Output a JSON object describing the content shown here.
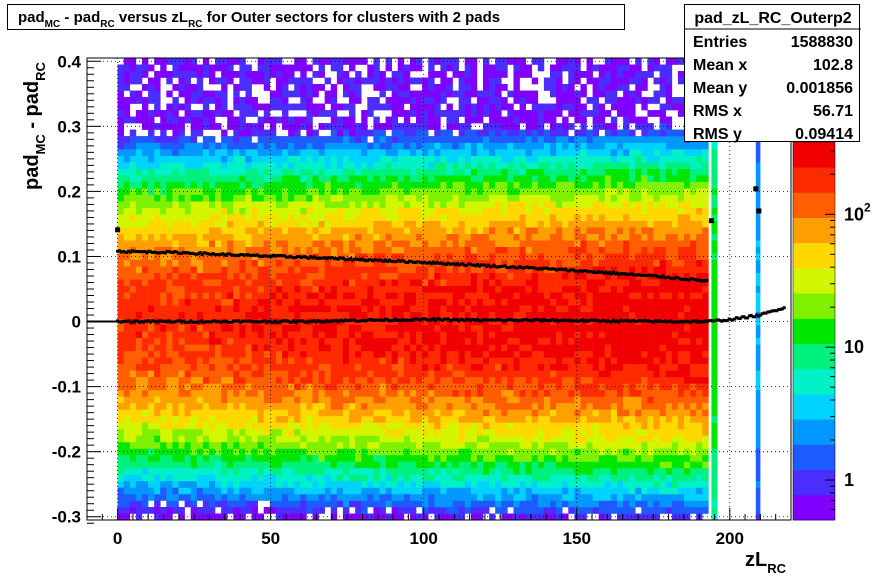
{
  "chart_data": {
    "type": "heatmap",
    "title_parts": {
      "a": "pad",
      "a_sub": "MC",
      "b": " - pad",
      "b_sub": "RC",
      "c": " versus zL",
      "c_sub": "RC",
      "d": " for Outer sectors for clusters with 2 pads"
    },
    "xlabel": {
      "main": "zL",
      "sub": "RC"
    },
    "ylabel": {
      "a": "pad",
      "a_sub": "MC",
      "b": " - pad",
      "b_sub": "RC"
    },
    "xlim": [
      -10,
      220
    ],
    "ylim": [
      -0.305,
      0.405
    ],
    "x_ticks": [
      0,
      50,
      100,
      150,
      200
    ],
    "y_ticks": [
      -0.3,
      -0.2,
      -0.1,
      0,
      0.1,
      0.2,
      0.3,
      0.4
    ],
    "x_tick_labels": [
      "0",
      "50",
      "100",
      "150",
      "200"
    ],
    "y_tick_labels": [
      "-0.3",
      "-0.2",
      "-0.1",
      "0",
      "0.1",
      "0.2",
      "0.3",
      "0.4"
    ],
    "grid": true,
    "z_scale": "log",
    "z_range": [
      0.5,
      350
    ],
    "z_tick_labels": [
      {
        "value": 1,
        "base": "1",
        "exp": ""
      },
      {
        "value": 10,
        "base": "10",
        "exp": ""
      },
      {
        "value": 100,
        "base": "10",
        "exp": "2"
      }
    ],
    "density_model": {
      "x_range": [
        0,
        193
      ],
      "z_max": 320,
      "sigma_y": 0.088,
      "extra_bands": [
        [
          194,
          196
        ],
        [
          208.5,
          210
        ]
      ]
    },
    "profile_mean": {
      "x": [
        0,
        20,
        40,
        60,
        80,
        100,
        120,
        140,
        160,
        180,
        193,
        200,
        210,
        218
      ],
      "y": [
        0.0,
        0.0,
        0.0,
        0.0,
        0.002,
        0.003,
        0.002,
        0.002,
        0.001,
        0.0,
        0.0,
        0.003,
        0.01,
        0.022
      ]
    },
    "profile_rms": {
      "x": [
        0,
        20,
        40,
        60,
        80,
        100,
        120,
        140,
        160,
        180,
        193
      ],
      "y": [
        0.108,
        0.106,
        0.102,
        0.099,
        0.095,
        0.091,
        0.086,
        0.081,
        0.075,
        0.068,
        0.062
      ]
    },
    "outlier_points": [
      {
        "x": 0,
        "y": 0.141
      },
      {
        "x": 194,
        "y": 0.155
      },
      {
        "x": 208.5,
        "y": 0.204
      },
      {
        "x": 209.5,
        "y": 0.17
      }
    ],
    "colors": {
      "marker": "#000000",
      "palette": [
        "#7f00ff",
        "#4b2dff",
        "#1e5bff",
        "#0097ff",
        "#00d2ff",
        "#00f0c8",
        "#00f07d",
        "#00e600",
        "#7ff000",
        "#d2f500",
        "#ffd800",
        "#ff9f00",
        "#ff5f00",
        "#ff2a00",
        "#f00000"
      ]
    }
  },
  "stats": {
    "name": "pad_zL_RC_Outerp2",
    "rows": [
      {
        "label": "Entries",
        "value": "1588830"
      },
      {
        "label": "Mean x",
        "value": "102.8"
      },
      {
        "label": "Mean y",
        "value": "0.001856"
      },
      {
        "label": "RMS x",
        "value": "56.71"
      },
      {
        "label": "RMS y",
        "value": "0.09414"
      }
    ]
  }
}
